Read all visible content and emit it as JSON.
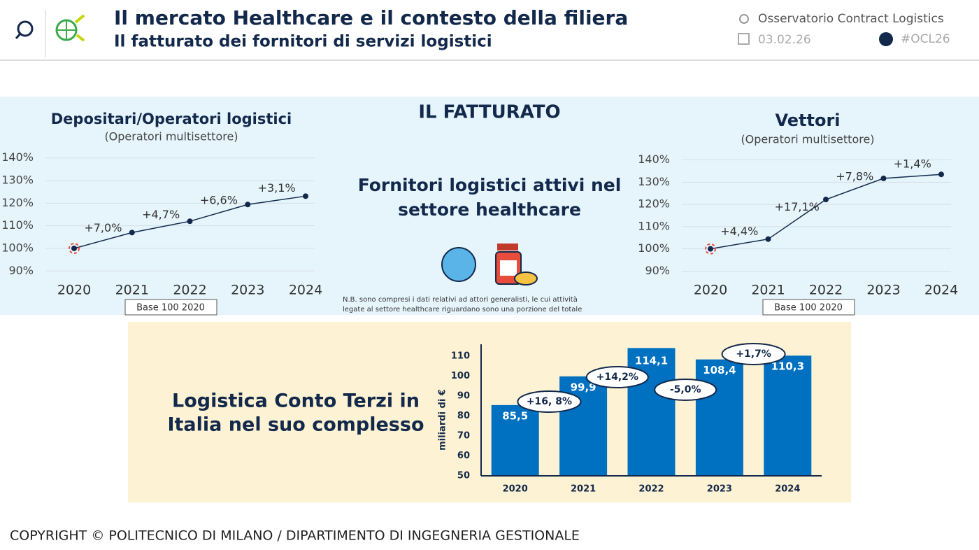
{
  "header": {
    "title": "Il mercato Healthcare e il contesto della filiera",
    "subtitle": "Il fatturato dei fornitori di servizi logistici",
    "observatory": "Osservatorio Contract Logistics",
    "date": "03.02.26",
    "hashtag": "#OCL26"
  },
  "center": {
    "title": "IL FATTURATO",
    "heading": [
      "Fornitori logistici attivi nel",
      "settore healthcare"
    ],
    "note": [
      "N.B. sono compresi i dati relativi ad attori generalisti, le cui attività",
      "legate al settore healthcare riguardano sono una porzione del totale"
    ]
  },
  "footer": "COPYRIGHT © POLITECNICO DI MILANO / DIPARTIMENTO DI INGEGNERIA GESTIONALE",
  "chart_data": [
    {
      "type": "line",
      "title": "Depositari/Operatori logistici",
      "subtitle": "(Operatori multisettore)",
      "note": "Base 100 2020",
      "categories": [
        "2020",
        "2021",
        "2022",
        "2023",
        "2024"
      ],
      "values": [
        100,
        107,
        112,
        119.4,
        123.1
      ],
      "annotations": [
        null,
        "+7,0%",
        "+4,7%",
        "+6,6%",
        "+3,1%"
      ],
      "color": "#13294b",
      "ylim": [
        87,
        143
      ],
      "yticks": [
        {
          "value": 90,
          "label": "90%"
        },
        {
          "value": 100,
          "label": "100%"
        },
        {
          "value": 110,
          "label": "110%"
        },
        {
          "value": 120,
          "label": "120%"
        },
        {
          "value": 130,
          "label": "130%"
        },
        {
          "value": 140,
          "label": "140%"
        }
      ],
      "grid": true
    },
    {
      "type": "line",
      "title": "Vettori",
      "subtitle": "(Operatori multisettore)",
      "note": "Base 100 2020",
      "categories": [
        "2020",
        "2021",
        "2022",
        "2023",
        "2024"
      ],
      "values": [
        100,
        104.4,
        122.2,
        131.7,
        133.5
      ],
      "annotations": [
        null,
        "+4,4%",
        "+17,1%",
        "+7,8%",
        "+1,4%"
      ],
      "color": "#13294b",
      "ylim": [
        87,
        143
      ],
      "yticks": [
        {
          "value": 90,
          "label": "90%"
        },
        {
          "value": 100,
          "label": "100%"
        },
        {
          "value": 110,
          "label": "110%"
        },
        {
          "value": 120,
          "label": "120%"
        },
        {
          "value": 130,
          "label": "130%"
        },
        {
          "value": 140,
          "label": "140%"
        }
      ],
      "grid": true
    },
    {
      "type": "bar",
      "title": [
        "Logistica Conto Terzi in",
        "Italia nel suo complesso"
      ],
      "y_label": "miliardi di €",
      "categories": [
        "2020",
        "2021",
        "2022",
        "2023",
        "2024"
      ],
      "values": [
        85.5,
        99.9,
        114.1,
        108.4,
        110.3
      ],
      "value_labels": [
        "85,5",
        "99,9",
        "114,1",
        "108,4",
        "110,3"
      ],
      "annotations": [
        null,
        "+16, 8%",
        "+14,2%",
        "-5,0%",
        "+1,7%"
      ],
      "color": "#0070c0",
      "ylim": [
        50,
        116
      ],
      "yticks": [
        50,
        60,
        70,
        80,
        90,
        100,
        110
      ],
      "grid": false
    }
  ]
}
